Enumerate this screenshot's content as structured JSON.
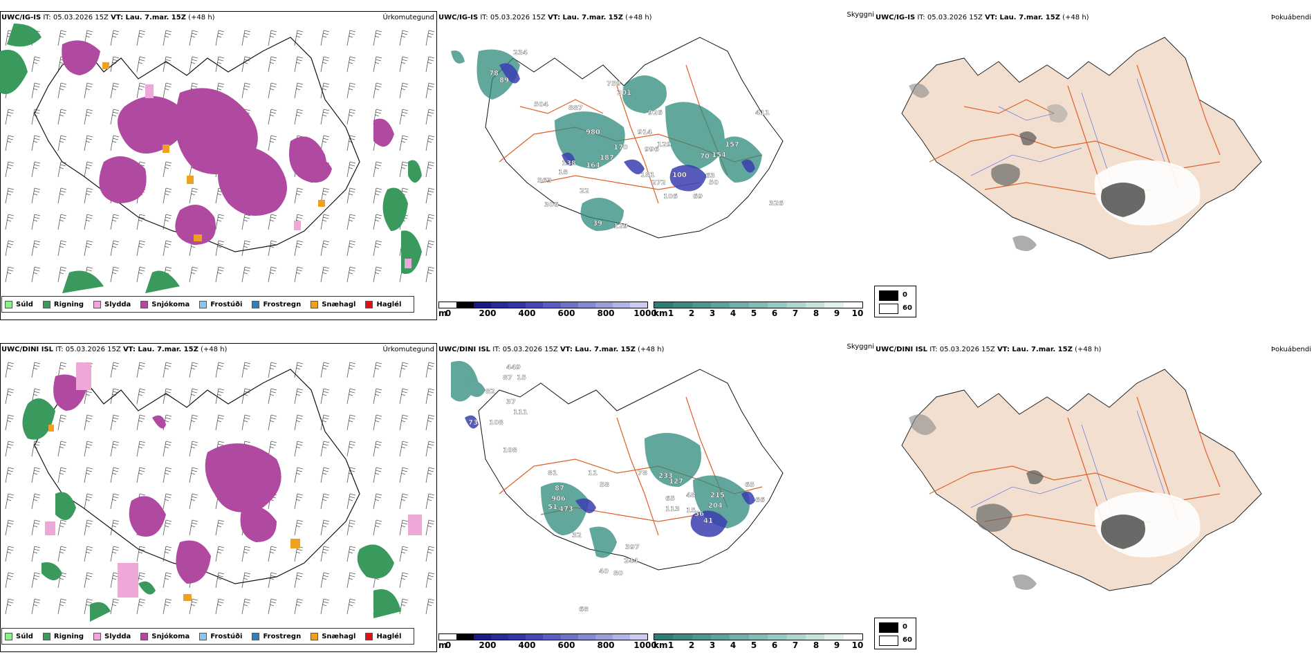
{
  "panels_rows": [
    {
      "model": "UWC/IG-IS",
      "precip": {
        "title": "Úrkomutegund",
        "it_label": "IT:",
        "it_value": "05.03.2026 15Z",
        "vt_label": "VT: Lau. 7.mar. 15Z",
        "lead": "(+48 h)"
      },
      "cloud": {
        "title": "Skyggni",
        "it_label": "IT:",
        "it_value": "05.03.2026 15Z",
        "vt_label": "VT: Lau. 7.mar. 15Z",
        "lead": "(+48 h)",
        "labels": [
          "234",
          "78",
          "89",
          "504",
          "887",
          "759",
          "201",
          "926",
          "980",
          "914",
          "170",
          "996",
          "129",
          "187",
          "138",
          "18",
          "164",
          "563",
          "181",
          "272",
          "100",
          "63",
          "70",
          "154",
          "157",
          "411",
          "22",
          "50",
          "106",
          "69",
          "326",
          "39",
          "129",
          "306"
        ]
      },
      "fog": {
        "title": "Þokuábendi",
        "it_label": "IT:",
        "it_value": "05.03.2026 15Z",
        "vt_label": "VT: Lau. 7.mar. 15Z",
        "lead": "(+48 h)"
      }
    },
    {
      "model": "UWC/DINI ISL",
      "precip": {
        "title": "Úrkomutegund",
        "it_label": "IT:",
        "it_value": "05.03.2026 15Z",
        "vt_label": "VT: Lau. 7.mar. 15Z",
        "lead": "(+48 h)"
      },
      "cloud": {
        "title": "Skyggni",
        "it_label": "IT:",
        "it_value": "05.03.2026 15Z",
        "vt_label": "VT: Lau. 7.mar. 15Z",
        "lead": "(+48 h)",
        "labels": [
          "449",
          "87",
          "15",
          "82",
          "37",
          "111",
          "73",
          "108",
          "108",
          "81",
          "11",
          "58",
          "87",
          "906",
          "51",
          "473",
          "78",
          "233",
          "127",
          "65",
          "48",
          "113",
          "15",
          "56",
          "41",
          "204",
          "215",
          "65",
          "66",
          "32",
          "397",
          "244",
          "40",
          "80",
          "68"
        ]
      },
      "fog": {
        "title": "Þokuábendi",
        "it_label": "IT:",
        "it_value": "05.03.2026 15Z",
        "vt_label": "VT: Lau. 7.mar. 15Z",
        "lead": "(+48 h)"
      }
    }
  ],
  "precip_legend": [
    {
      "label": "Súld",
      "color": "#90ee90"
    },
    {
      "label": "Rigning",
      "color": "#3a9a5e"
    },
    {
      "label": "Slydda",
      "color": "#eea8d8"
    },
    {
      "label": "Snjókoma",
      "color": "#b04aa0"
    },
    {
      "label": "Frostúði",
      "color": "#8ec6f0"
    },
    {
      "label": "Frostregn",
      "color": "#2e7fc2"
    },
    {
      "label": "Snæhagl",
      "color": "#f0a020"
    },
    {
      "label": "Haglél",
      "color": "#dd1111"
    }
  ],
  "cloud_base_bar": {
    "unit": "m",
    "ticks": [
      "0",
      "200",
      "400",
      "600",
      "800",
      "1000"
    ],
    "colors": [
      "#ffffff",
      "#000000",
      "#1a1a80",
      "#262b96",
      "#3236a8",
      "#4548b4",
      "#5a5cbf",
      "#7072c8",
      "#8688d2",
      "#9c9edc",
      "#b2b4e6",
      "#cacdf0"
    ]
  },
  "visibility_bar": {
    "unit": "km",
    "ticks": [
      "1",
      "2",
      "3",
      "4",
      "5",
      "6",
      "7",
      "8",
      "9",
      "10"
    ],
    "colors": [
      "#2d7d76",
      "#3a8a83",
      "#4b978f",
      "#5da39c",
      "#6fb0a9",
      "#83bcb5",
      "#98c9c2",
      "#aed5cf",
      "#c6e2dd",
      "#e2f1ee",
      "#ffffff"
    ]
  },
  "fog_legend": {
    "items": [
      {
        "label": "0",
        "color": "#000000"
      },
      {
        "label": "60",
        "color": "#ffffff"
      }
    ]
  },
  "colors": {
    "rain": "#3a9a5e",
    "snow": "#b04aa0",
    "sleet": "#eea8d8",
    "snowgrain": "#f0a020",
    "land_fog": "#f3dfcf",
    "roads": "#e0602a",
    "rivers": "#6f7fe6",
    "visibility": "#2d8a7c"
  }
}
